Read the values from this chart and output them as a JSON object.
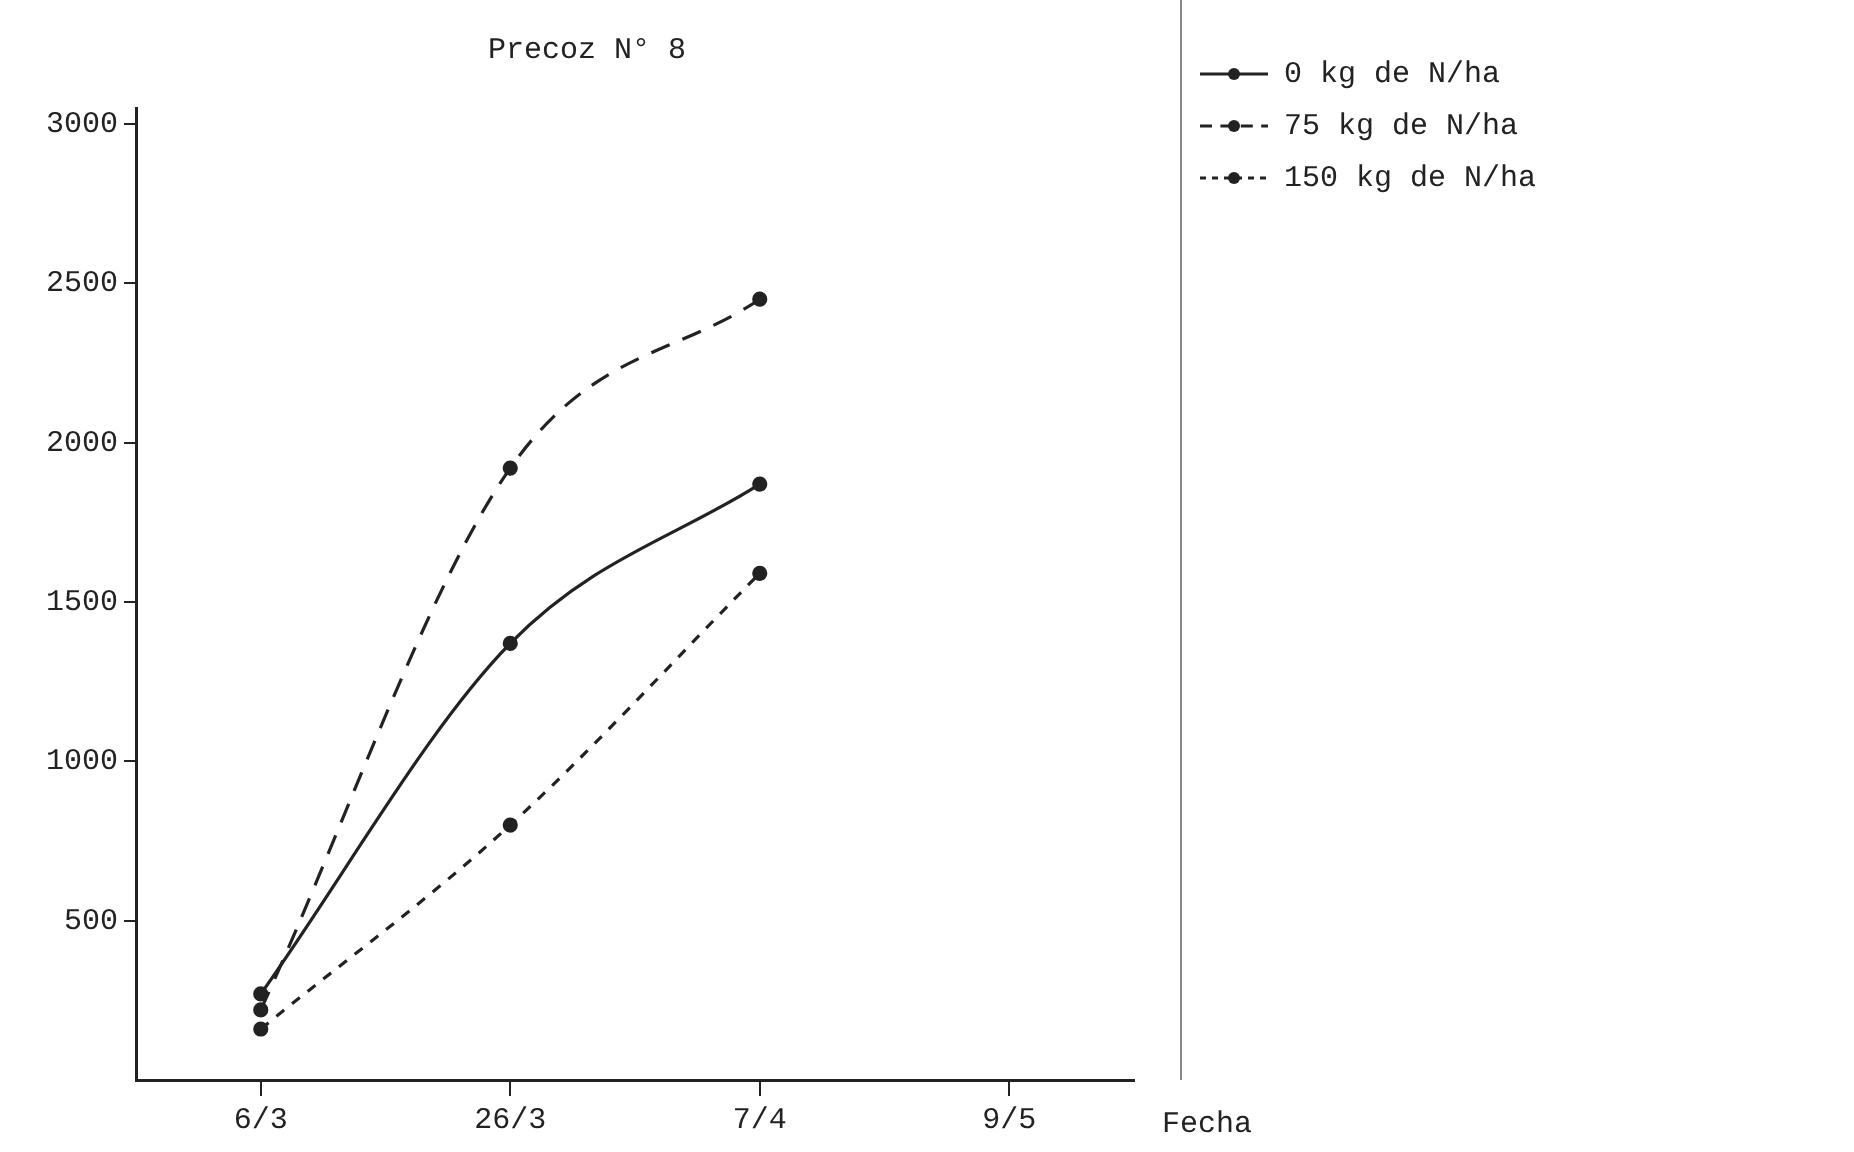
{
  "chart_data": {
    "type": "line",
    "title": "Precoz N° 8",
    "xlabel": "Fecha",
    "categories": [
      "6/3",
      "26/3",
      "7/4",
      "9/5"
    ],
    "series": [
      {
        "name": "0 kg de N/ha",
        "color": "#222222",
        "line_style": "solid",
        "values": [
          270,
          1370,
          1870,
          null
        ]
      },
      {
        "name": "75 kg de N/ha",
        "color": "#222222",
        "line_style": "dashed",
        "values": [
          220,
          1920,
          2450,
          null
        ]
      },
      {
        "name": "150 kg de N/ha",
        "color": "#222222",
        "line_style": "dotted",
        "values": [
          160,
          800,
          1590,
          null
        ]
      }
    ],
    "ylim": [
      0,
      3050
    ],
    "yticks": [
      500,
      1000,
      1500,
      2000,
      2500,
      3000
    ],
    "grid": false,
    "legend": "top right",
    "marker": "circle"
  }
}
